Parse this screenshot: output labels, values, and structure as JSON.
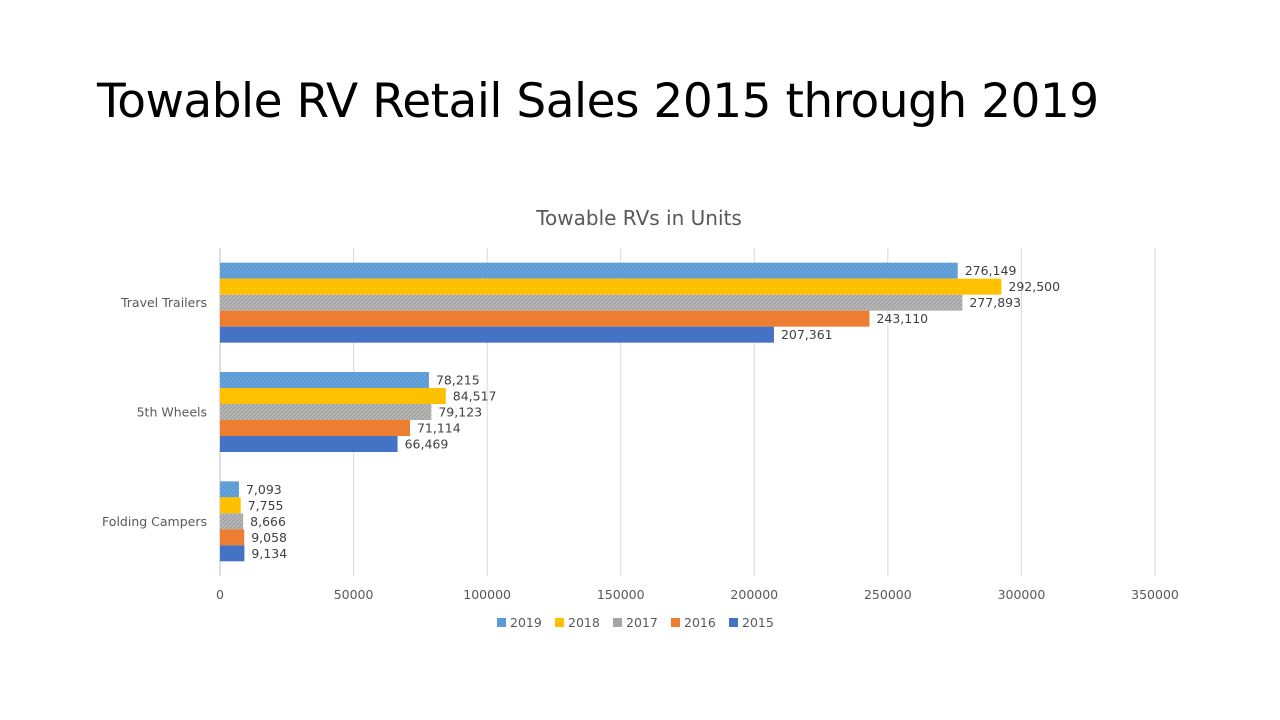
{
  "slide": {
    "title": "Towable RV Retail Sales 2015 through 2019"
  },
  "chart_data": {
    "type": "bar",
    "orientation": "horizontal",
    "title": "Towable RVs in Units",
    "xlabel": "",
    "ylabel": "",
    "categories": [
      "Travel Trailers",
      "5th Wheels",
      "Folding Campers"
    ],
    "series": [
      {
        "name": "2019",
        "color": "#5B9BD5",
        "values": [
          276149,
          78215,
          7093
        ],
        "labels": [
          "276,149",
          "78,215",
          "7,093"
        ]
      },
      {
        "name": "2018",
        "color": "#FFC000",
        "values": [
          292500,
          84517,
          7755
        ],
        "labels": [
          "292,500",
          "84,517",
          "7,755"
        ]
      },
      {
        "name": "2017",
        "color": "#A5A5A5",
        "values": [
          277893,
          79123,
          8666
        ],
        "labels": [
          "277,893",
          "79,123",
          "8,666"
        ]
      },
      {
        "name": "2016",
        "color": "#ED7D31",
        "values": [
          243110,
          71114,
          9058
        ],
        "labels": [
          "243,110",
          "71,114",
          "9,058"
        ]
      },
      {
        "name": "2015",
        "color": "#4472C4",
        "values": [
          207361,
          66469,
          9134
        ],
        "labels": [
          "207,361",
          "66,469",
          "9,134"
        ]
      }
    ],
    "xlim": [
      0,
      350000
    ],
    "xticks": [
      0,
      50000,
      100000,
      150000,
      200000,
      250000,
      300000,
      350000
    ],
    "xtick_labels": [
      "0",
      "50000",
      "100000",
      "150000",
      "200000",
      "250000",
      "300000",
      "350000"
    ],
    "grid": true,
    "legend_position": "bottom",
    "data_labels": true
  }
}
